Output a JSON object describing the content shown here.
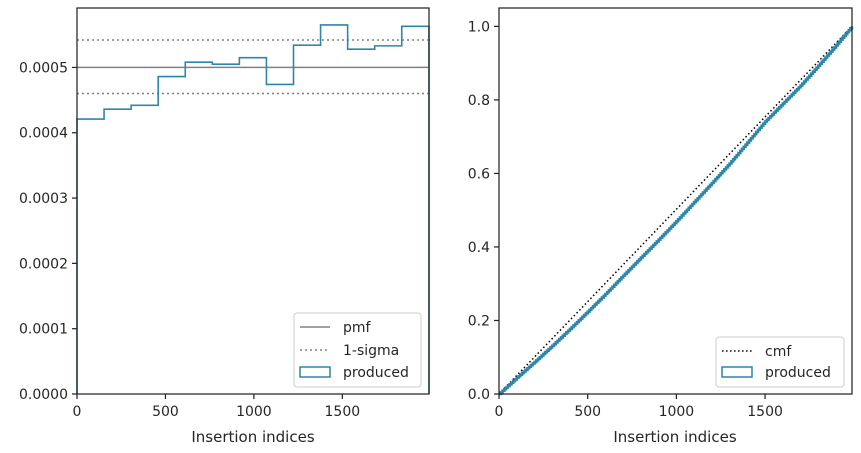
{
  "chart_data": [
    {
      "type": "step-histogram",
      "xlabel": "Insertion indices",
      "ylabel": "",
      "xlim": [
        0,
        1990
      ],
      "ylim": [
        0,
        0.000591
      ],
      "xticks": [
        0,
        500,
        1000,
        1500
      ],
      "xtick_labels": [
        "0",
        "500",
        "1000",
        "1500"
      ],
      "yticks": [
        0,
        0.0001,
        0.0002,
        0.0003,
        0.0004,
        0.0005
      ],
      "ytick_labels": [
        "0.0000",
        "0.0001",
        "0.0002",
        "0.0003",
        "0.0004",
        "0.0005"
      ],
      "pmf": 0.0005,
      "sigma_band": [
        0.00046,
        0.000542
      ],
      "bin_edges": [
        0,
        153,
        306,
        459,
        612,
        765,
        918,
        1071,
        1224,
        1377,
        1530,
        1683,
        1836,
        1990
      ],
      "series": [
        {
          "name": "produced",
          "values": [
            0.000421,
            0.000436,
            0.000442,
            0.000486,
            0.000508,
            0.000505,
            0.000515,
            0.000474,
            0.000534,
            0.000565,
            0.000528,
            0.000533,
            0.000563
          ]
        }
      ],
      "legend": {
        "placement": "lower right",
        "entries": [
          "pmf",
          "1-sigma",
          "produced"
        ]
      },
      "grid": false
    },
    {
      "type": "line",
      "xlabel": "Insertion indices",
      "ylabel": "",
      "xlim": [
        0,
        1990
      ],
      "ylim": [
        0,
        1.05
      ],
      "xticks": [
        0,
        500,
        1000,
        1500
      ],
      "xtick_labels": [
        "0",
        "500",
        "1000",
        "1500"
      ],
      "yticks": [
        0,
        0.2,
        0.4,
        0.6,
        0.8,
        1.0
      ],
      "ytick_labels": [
        "0.0",
        "0.2",
        "0.4",
        "0.6",
        "0.8",
        "1.0"
      ],
      "series": [
        {
          "name": "cmf",
          "x": [
            0,
            1990
          ],
          "y": [
            0,
            1.0
          ]
        },
        {
          "name": "produced",
          "x": [
            0,
            100,
            200,
            300,
            400,
            500,
            600,
            700,
            800,
            900,
            1000,
            1100,
            1200,
            1300,
            1400,
            1500,
            1600,
            1700,
            1800,
            1900,
            1990
          ],
          "y": [
            0,
            0.044,
            0.087,
            0.131,
            0.177,
            0.224,
            0.272,
            0.322,
            0.371,
            0.42,
            0.47,
            0.522,
            0.574,
            0.627,
            0.684,
            0.741,
            0.79,
            0.839,
            0.893,
            0.948,
            1.0
          ]
        }
      ],
      "legend": {
        "placement": "lower right",
        "entries": [
          "cmf",
          "produced"
        ]
      },
      "grid": false
    }
  ],
  "colors": {
    "pmf": "#808080",
    "sigma": "#808080",
    "produced": "#2e86ab",
    "cmf": "#000000",
    "axes": "#262626"
  }
}
